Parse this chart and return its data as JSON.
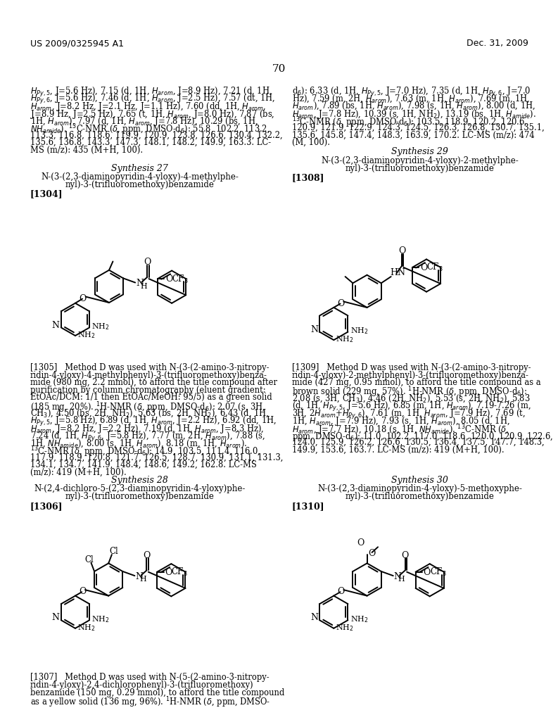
{
  "page_header_left": "US 2009/0325945 A1",
  "page_header_right": "Dec. 31, 2009",
  "page_number": "70",
  "background_color": "#ffffff"
}
